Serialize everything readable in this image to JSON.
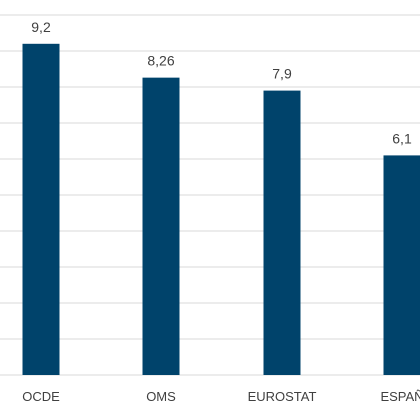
{
  "chart_data": {
    "type": "bar",
    "categories": [
      "OCDE",
      "OMS",
      "EUROSTAT",
      "ESPAÑ"
    ],
    "values": [
      9.2,
      8.26,
      7.9,
      6.1
    ],
    "data_labels": [
      "9,2",
      "8,26",
      "7,9",
      "6,1"
    ],
    "title": "",
    "xlabel": "",
    "ylabel": "",
    "ylim": [
      0,
      10
    ],
    "grid": true,
    "legend": "none",
    "bar_color": "#00436b",
    "grid_color": "#d9d9d9",
    "label_color": "#404040"
  }
}
